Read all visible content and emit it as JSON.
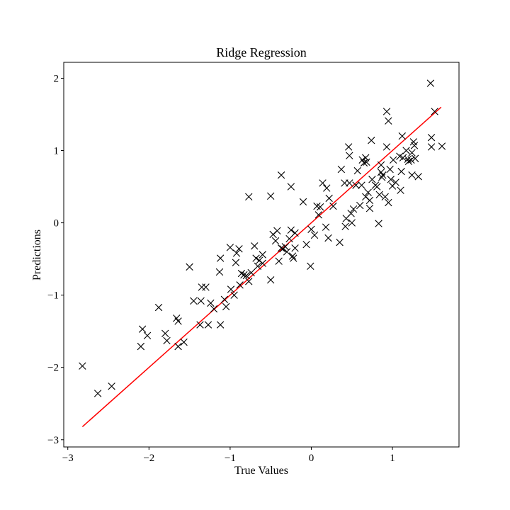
{
  "chart_data": {
    "type": "scatter",
    "title": "Ridge Regression",
    "xlabel": "True Values",
    "ylabel": "Predictions",
    "xlim": [
      -3.05,
      1.82
    ],
    "ylim": [
      -3.1,
      2.22
    ],
    "xticks": [
      -3,
      -2,
      -1,
      0,
      1
    ],
    "yticks": [
      -3,
      -2,
      -1,
      0,
      1,
      2
    ],
    "xtick_labels": [
      "−3",
      "−2",
      "−1",
      "0",
      "1"
    ],
    "ytick_labels": [
      "−3",
      "−2",
      "−1",
      "0",
      "1",
      "2"
    ],
    "grid": false,
    "marker": "x",
    "marker_color": "#000000",
    "line_color": "#ff0000",
    "fit_line": [
      [
        -2.82,
        -2.82
      ],
      [
        1.6,
        1.6
      ]
    ],
    "points": [
      [
        -2.82,
        -1.98
      ],
      [
        -2.63,
        -2.36
      ],
      [
        -2.46,
        -2.26
      ],
      [
        -2.1,
        -1.71
      ],
      [
        -2.08,
        -1.47
      ],
      [
        -2.02,
        -1.56
      ],
      [
        -1.88,
        -1.17
      ],
      [
        -1.8,
        -1.53
      ],
      [
        -1.78,
        -1.63
      ],
      [
        -1.66,
        -1.32
      ],
      [
        -1.64,
        -1.36
      ],
      [
        -1.64,
        -1.71
      ],
      [
        -1.57,
        -1.65
      ],
      [
        -1.5,
        -0.61
      ],
      [
        -1.45,
        -1.08
      ],
      [
        -1.37,
        -1.41
      ],
      [
        -1.36,
        -1.08
      ],
      [
        -1.35,
        -0.89
      ],
      [
        -1.3,
        -0.89
      ],
      [
        -1.27,
        -1.41
      ],
      [
        -1.24,
        -1.11
      ],
      [
        -1.2,
        -1.19
      ],
      [
        -1.13,
        -0.68
      ],
      [
        -1.12,
        -0.49
      ],
      [
        -1.12,
        -1.41
      ],
      [
        -1.07,
        -1.06
      ],
      [
        -1.05,
        -1.16
      ],
      [
        -1.0,
        -0.34
      ],
      [
        -0.99,
        -0.92
      ],
      [
        -0.95,
        -1.0
      ],
      [
        -0.93,
        -0.55
      ],
      [
        -0.92,
        -0.42
      ],
      [
        -0.89,
        -0.36
      ],
      [
        -0.88,
        -0.86
      ],
      [
        -0.86,
        -0.7
      ],
      [
        -0.83,
        -0.72
      ],
      [
        -0.8,
        -0.73
      ],
      [
        -0.77,
        -0.81
      ],
      [
        -0.77,
        0.36
      ],
      [
        -0.74,
        -0.69
      ],
      [
        -0.7,
        -0.32
      ],
      [
        -0.68,
        -0.49
      ],
      [
        -0.66,
        -0.6
      ],
      [
        -0.64,
        -0.52
      ],
      [
        -0.6,
        -0.56
      ],
      [
        -0.6,
        -0.44
      ],
      [
        -0.5,
        -0.79
      ],
      [
        -0.5,
        0.37
      ],
      [
        -0.47,
        -0.16
      ],
      [
        -0.44,
        -0.25
      ],
      [
        -0.42,
        -0.11
      ],
      [
        -0.4,
        -0.53
      ],
      [
        -0.37,
        0.66
      ],
      [
        -0.37,
        -0.35
      ],
      [
        -0.35,
        -0.36
      ],
      [
        -0.32,
        -0.33
      ],
      [
        -0.3,
        -0.4
      ],
      [
        -0.27,
        -0.22
      ],
      [
        -0.25,
        0.5
      ],
      [
        -0.25,
        -0.1
      ],
      [
        -0.23,
        -0.46
      ],
      [
        -0.22,
        -0.49
      ],
      [
        -0.2,
        -0.14
      ],
      [
        -0.2,
        -0.35
      ],
      [
        -0.1,
        0.29
      ],
      [
        -0.06,
        -0.3
      ],
      [
        -0.01,
        -0.6
      ],
      [
        0.0,
        -0.09
      ],
      [
        0.04,
        -0.17
      ],
      [
        0.07,
        0.23
      ],
      [
        0.09,
        0.11
      ],
      [
        0.11,
        0.22
      ],
      [
        0.14,
        0.55
      ],
      [
        0.18,
        -0.06
      ],
      [
        0.19,
        0.48
      ],
      [
        0.21,
        -0.21
      ],
      [
        0.22,
        0.34
      ],
      [
        0.27,
        0.23
      ],
      [
        0.35,
        -0.27
      ],
      [
        0.37,
        0.74
      ],
      [
        0.41,
        0.55
      ],
      [
        0.42,
        -0.05
      ],
      [
        0.43,
        0.06
      ],
      [
        0.46,
        1.05
      ],
      [
        0.47,
        0.93
      ],
      [
        0.47,
        0.55
      ],
      [
        0.49,
        0.13
      ],
      [
        0.5,
        0.0
      ],
      [
        0.52,
        0.19
      ],
      [
        0.55,
        0.52
      ],
      [
        0.57,
        0.72
      ],
      [
        0.6,
        0.24
      ],
      [
        0.62,
        0.52
      ],
      [
        0.63,
        0.87
      ],
      [
        0.65,
        0.83
      ],
      [
        0.67,
        0.9
      ],
      [
        0.67,
        0.36
      ],
      [
        0.68,
        0.84
      ],
      [
        0.7,
        0.42
      ],
      [
        0.72,
        0.2
      ],
      [
        0.72,
        0.31
      ],
      [
        0.74,
        1.14
      ],
      [
        0.75,
        0.6
      ],
      [
        0.79,
        0.52
      ],
      [
        0.81,
        0.5
      ],
      [
        0.83,
        -0.01
      ],
      [
        0.84,
        0.39
      ],
      [
        0.86,
        0.8
      ],
      [
        0.86,
        0.7
      ],
      [
        0.87,
        0.63
      ],
      [
        0.88,
        0.66
      ],
      [
        0.91,
        0.36
      ],
      [
        0.93,
        1.05
      ],
      [
        0.93,
        1.54
      ],
      [
        0.95,
        1.41
      ],
      [
        0.95,
        0.28
      ],
      [
        0.97,
        0.74
      ],
      [
        0.98,
        0.6
      ],
      [
        1.0,
        0.51
      ],
      [
        1.01,
        0.87
      ],
      [
        1.04,
        0.56
      ],
      [
        1.09,
        0.92
      ],
      [
        1.1,
        0.45
      ],
      [
        1.11,
        0.71
      ],
      [
        1.12,
        1.2
      ],
      [
        1.13,
        0.9
      ],
      [
        1.17,
        1.0
      ],
      [
        1.19,
        0.88
      ],
      [
        1.2,
        0.85
      ],
      [
        1.23,
        0.87
      ],
      [
        1.24,
        0.66
      ],
      [
        1.24,
        0.97
      ],
      [
        1.26,
        1.12
      ],
      [
        1.27,
        1.07
      ],
      [
        1.28,
        0.89
      ],
      [
        1.32,
        0.64
      ],
      [
        1.47,
        1.93
      ],
      [
        1.48,
        1.18
      ],
      [
        1.48,
        1.05
      ],
      [
        1.52,
        1.54
      ],
      [
        1.61,
        1.06
      ]
    ]
  }
}
